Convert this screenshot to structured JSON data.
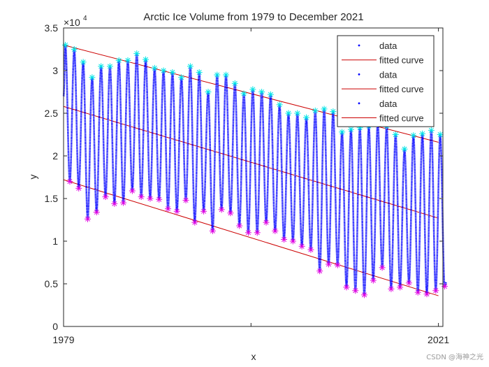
{
  "watermark": "CSDN @海神之光",
  "chart_data": {
    "type": "line",
    "title": "Arctic Ice Volume from 1979 to December 2021",
    "xlabel": "x",
    "ylabel": "y",
    "x_ticks": [
      "1979",
      "2021"
    ],
    "xlim": [
      1979,
      2021.5
    ],
    "ylim": [
      0,
      35000
    ],
    "y_ticks": [
      0,
      5000,
      10000,
      15000,
      20000,
      25000,
      30000,
      35000
    ],
    "y_tick_labels": [
      "0",
      "0.5",
      "1",
      "1.5",
      "2",
      "2.5",
      "3",
      "3.5"
    ],
    "y_exponent_label": "×10",
    "y_exponent_power": "4",
    "grid": false,
    "legend_position": "top-right",
    "legend": [
      "data",
      "fitted curve",
      "data",
      "fitted curve",
      "data",
      "fitted curve"
    ],
    "colors": {
      "data": "#0000ff",
      "fit": "#cc0000",
      "max_marker": "#00e5e5",
      "min_marker": "#e000e0"
    },
    "annual_max": [
      {
        "year": 1979,
        "value": 33000
      },
      {
        "year": 1980,
        "value": 32500
      },
      {
        "year": 1981,
        "value": 31000
      },
      {
        "year": 1982,
        "value": 29200
      },
      {
        "year": 1983,
        "value": 30500
      },
      {
        "year": 1984,
        "value": 30500
      },
      {
        "year": 1985,
        "value": 31200
      },
      {
        "year": 1986,
        "value": 31200
      },
      {
        "year": 1987,
        "value": 32000
      },
      {
        "year": 1988,
        "value": 31300
      },
      {
        "year": 1989,
        "value": 30300
      },
      {
        "year": 1990,
        "value": 30000
      },
      {
        "year": 1991,
        "value": 29800
      },
      {
        "year": 1992,
        "value": 29200
      },
      {
        "year": 1993,
        "value": 30500
      },
      {
        "year": 1994,
        "value": 29800
      },
      {
        "year": 1995,
        "value": 27500
      },
      {
        "year": 1996,
        "value": 29500
      },
      {
        "year": 1997,
        "value": 29500
      },
      {
        "year": 1998,
        "value": 28500
      },
      {
        "year": 1999,
        "value": 27300
      },
      {
        "year": 2000,
        "value": 27800
      },
      {
        "year": 2001,
        "value": 27500
      },
      {
        "year": 2002,
        "value": 27200
      },
      {
        "year": 2003,
        "value": 26000
      },
      {
        "year": 2004,
        "value": 25000
      },
      {
        "year": 2005,
        "value": 25000
      },
      {
        "year": 2006,
        "value": 24500
      },
      {
        "year": 2007,
        "value": 25300
      },
      {
        "year": 2008,
        "value": 25500
      },
      {
        "year": 2009,
        "value": 25200
      },
      {
        "year": 2010,
        "value": 22800
      },
      {
        "year": 2011,
        "value": 23100
      },
      {
        "year": 2012,
        "value": 23300
      },
      {
        "year": 2013,
        "value": 23500
      },
      {
        "year": 2014,
        "value": 23900
      },
      {
        "year": 2015,
        "value": 23500
      },
      {
        "year": 2016,
        "value": 22500
      },
      {
        "year": 2017,
        "value": 20800
      },
      {
        "year": 2018,
        "value": 22400
      },
      {
        "year": 2019,
        "value": 22600
      },
      {
        "year": 2020,
        "value": 23000
      },
      {
        "year": 2021,
        "value": 22500
      }
    ],
    "annual_min": [
      {
        "year": 1979,
        "value": 17000
      },
      {
        "year": 1980,
        "value": 16200
      },
      {
        "year": 1981,
        "value": 12600
      },
      {
        "year": 1982,
        "value": 13400
      },
      {
        "year": 1983,
        "value": 15200
      },
      {
        "year": 1984,
        "value": 14400
      },
      {
        "year": 1985,
        "value": 14500
      },
      {
        "year": 1986,
        "value": 15900
      },
      {
        "year": 1987,
        "value": 15200
      },
      {
        "year": 1988,
        "value": 15000
      },
      {
        "year": 1989,
        "value": 14900
      },
      {
        "year": 1990,
        "value": 13800
      },
      {
        "year": 1991,
        "value": 13500
      },
      {
        "year": 1992,
        "value": 14800
      },
      {
        "year": 1993,
        "value": 12200
      },
      {
        "year": 1994,
        "value": 13500
      },
      {
        "year": 1995,
        "value": 11200
      },
      {
        "year": 1996,
        "value": 13700
      },
      {
        "year": 1997,
        "value": 13300
      },
      {
        "year": 1998,
        "value": 11800
      },
      {
        "year": 1999,
        "value": 11000
      },
      {
        "year": 2000,
        "value": 11000
      },
      {
        "year": 2001,
        "value": 12200
      },
      {
        "year": 2002,
        "value": 11200
      },
      {
        "year": 2003,
        "value": 10200
      },
      {
        "year": 2004,
        "value": 10000
      },
      {
        "year": 2005,
        "value": 9400
      },
      {
        "year": 2006,
        "value": 9000
      },
      {
        "year": 2007,
        "value": 6500
      },
      {
        "year": 2008,
        "value": 7300
      },
      {
        "year": 2009,
        "value": 7200
      },
      {
        "year": 2010,
        "value": 4600
      },
      {
        "year": 2011,
        "value": 4200
      },
      {
        "year": 2012,
        "value": 3700
      },
      {
        "year": 2013,
        "value": 5400
      },
      {
        "year": 2014,
        "value": 6900
      },
      {
        "year": 2015,
        "value": 4400
      },
      {
        "year": 2016,
        "value": 4600
      },
      {
        "year": 2017,
        "value": 5100
      },
      {
        "year": 2018,
        "value": 4000
      },
      {
        "year": 2019,
        "value": 3800
      },
      {
        "year": 2020,
        "value": 4200
      },
      {
        "year": 2021,
        "value": 4700
      }
    ],
    "fitted_lines": [
      {
        "x": [
          1979,
          2021
        ],
        "y": [
          33000,
          21600
        ]
      },
      {
        "x": [
          1979,
          2021
        ],
        "y": [
          25800,
          12700
        ]
      },
      {
        "x": [
          1979,
          2021
        ],
        "y": [
          17200,
          3600
        ]
      }
    ]
  }
}
